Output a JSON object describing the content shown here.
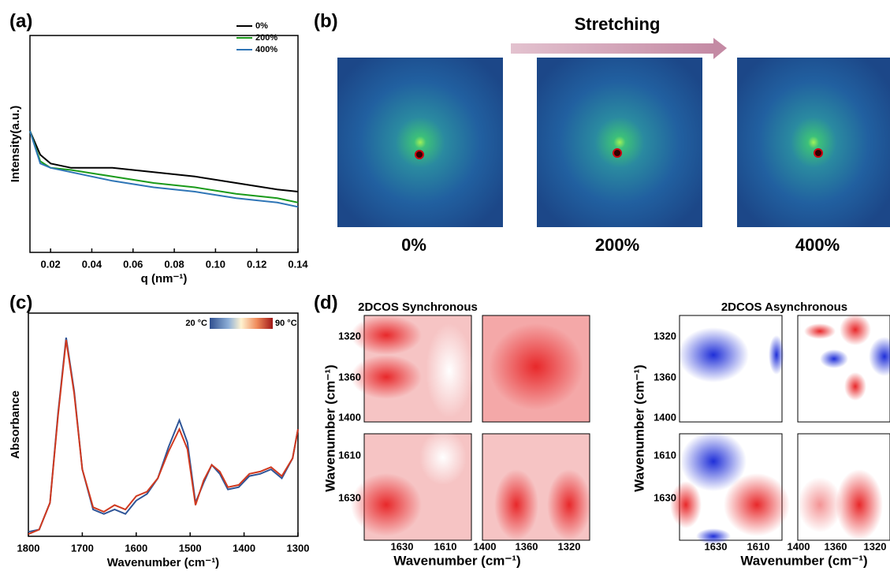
{
  "chart_data": [
    {
      "type": "line",
      "label": "(a)",
      "y_label": "Intensity(a.u.)",
      "x_label": "q (nm⁻¹)",
      "x": [
        0.01,
        0.015,
        0.02,
        0.03,
        0.05,
        0.07,
        0.09,
        0.11,
        0.13,
        0.14
      ],
      "series": [
        {
          "name": "0%",
          "color": "#000000",
          "values": [
            0.56,
            0.45,
            0.41,
            0.39,
            0.39,
            0.37,
            0.35,
            0.32,
            0.29,
            0.28
          ]
        },
        {
          "name": "200%",
          "color": "#1a9a1a",
          "values": [
            0.56,
            0.42,
            0.39,
            0.38,
            0.35,
            0.32,
            0.3,
            0.27,
            0.25,
            0.23
          ]
        },
        {
          "name": "400%",
          "color": "#2e75b6",
          "values": [
            0.56,
            0.41,
            0.39,
            0.37,
            0.33,
            0.3,
            0.28,
            0.25,
            0.23,
            0.21
          ]
        }
      ],
      "xlim": [
        0.01,
        0.14
      ],
      "ylim": [
        0,
        1
      ],
      "xticks": [
        0.02,
        0.04,
        0.06,
        0.08,
        {
          "value": 0.1,
          "label": "0.10"
        },
        0.12,
        0.14
      ],
      "legend": "upper right"
    },
    {
      "type": "line",
      "label": "(c)",
      "y_label": "Absorbance",
      "x_label": "Wavenumber (cm⁻¹)",
      "x": [
        1800,
        1780,
        1760,
        1745,
        1730,
        1715,
        1700,
        1680,
        1660,
        1640,
        1620,
        1600,
        1580,
        1560,
        1540,
        1520,
        1505,
        1490,
        1475,
        1460,
        1445,
        1430,
        1410,
        1390,
        1370,
        1350,
        1330,
        1310,
        1300
      ],
      "series": [
        {
          "name": "20 °C",
          "color": "#2f5597",
          "values": [
            0.02,
            0.03,
            0.15,
            0.55,
            0.89,
            0.65,
            0.3,
            0.12,
            0.1,
            0.12,
            0.1,
            0.16,
            0.19,
            0.26,
            0.4,
            0.52,
            0.42,
            0.15,
            0.24,
            0.32,
            0.28,
            0.21,
            0.22,
            0.27,
            0.28,
            0.3,
            0.26,
            0.35,
            0.48
          ]
        },
        {
          "name": "90 °C",
          "color": "#d0391f",
          "values": [
            0.01,
            0.03,
            0.15,
            0.54,
            0.88,
            0.64,
            0.3,
            0.13,
            0.11,
            0.14,
            0.12,
            0.18,
            0.2,
            0.26,
            0.38,
            0.48,
            0.39,
            0.14,
            0.25,
            0.32,
            0.29,
            0.22,
            0.23,
            0.28,
            0.29,
            0.31,
            0.27,
            0.35,
            0.48
          ]
        }
      ],
      "xlim": [
        1800,
        1300
      ],
      "ylim": [
        0,
        1
      ],
      "xticks": [
        1800,
        1700,
        1600,
        1500,
        1400,
        1300
      ],
      "legend": "upper right"
    }
  ],
  "panel_b": {
    "label": "(b)",
    "title": "Stretching",
    "images": [
      {
        "label": "0%"
      },
      {
        "label": "200%"
      },
      {
        "label": "400%"
      }
    ]
  },
  "panel_d": {
    "label": "(d)",
    "y_label": "Wavenumber (cm⁻¹)",
    "x_label": "Wavenumber (cm⁻¹)",
    "maps": [
      {
        "title": "2DCOS Synchronous"
      },
      {
        "title": "2DCOS Asynchronous"
      }
    ],
    "yticks_top": [
      1320,
      1360,
      1400
    ],
    "yticks_bottom": [
      1610,
      1630
    ],
    "xticks_left": [
      1630,
      1610
    ],
    "xticks_right": [
      1400,
      1360,
      1320
    ]
  }
}
